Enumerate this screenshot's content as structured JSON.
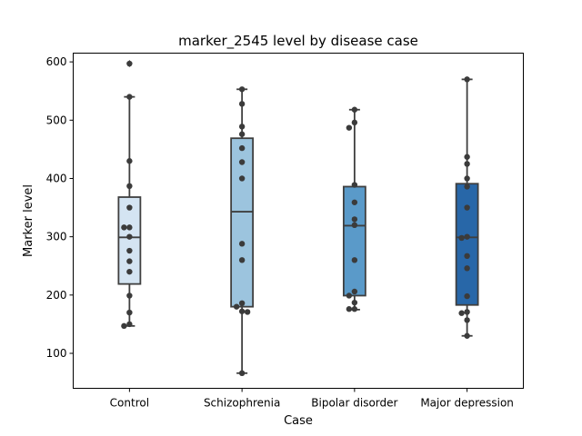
{
  "chart_data": {
    "type": "box",
    "title": "marker_2545 level by disease case",
    "xlabel": "Case",
    "ylabel": "Marker level",
    "categories": [
      "Control",
      "Schizophrenia",
      "Bipolar disorder",
      "Major depression"
    ],
    "yticks": [
      100,
      200,
      300,
      400,
      500,
      600
    ],
    "ylim": [
      40,
      615
    ],
    "grid": false,
    "series": [
      {
        "category": "Control",
        "color": "#d4e4f2",
        "box": {
          "whisker_low": 147,
          "q1": 219,
          "median": 299,
          "q3": 368,
          "whisker_high": 540
        },
        "outliers": [
          597
        ],
        "points": [
          597,
          540,
          430,
          387,
          350,
          316,
          316,
          300,
          276,
          258,
          240,
          199,
          170,
          150,
          147
        ]
      },
      {
        "category": "Schizophrenia",
        "color": "#9cc4de",
        "box": {
          "whisker_low": 66,
          "q1": 180,
          "median": 343,
          "q3": 469,
          "whisker_high": 553
        },
        "outliers": [],
        "points": [
          553,
          528,
          489,
          476,
          452,
          428,
          400,
          288,
          260,
          186,
          180,
          172,
          171,
          66
        ]
      },
      {
        "category": "Bipolar disorder",
        "color": "#5a9ac9",
        "box": {
          "whisker_low": 175,
          "q1": 199,
          "median": 319,
          "q3": 386,
          "whisker_high": 518
        },
        "outliers": [],
        "points": [
          518,
          496,
          487,
          389,
          359,
          330,
          320,
          260,
          206,
          199,
          187,
          176,
          176
        ]
      },
      {
        "category": "Major depression",
        "color": "#2867a8",
        "box": {
          "whisker_low": 130,
          "q1": 183,
          "median": 299,
          "q3": 391,
          "whisker_high": 570
        },
        "outliers": [],
        "points": [
          570,
          437,
          425,
          400,
          386,
          350,
          300,
          298,
          267,
          246,
          198,
          171,
          169,
          157,
          130
        ]
      }
    ]
  }
}
